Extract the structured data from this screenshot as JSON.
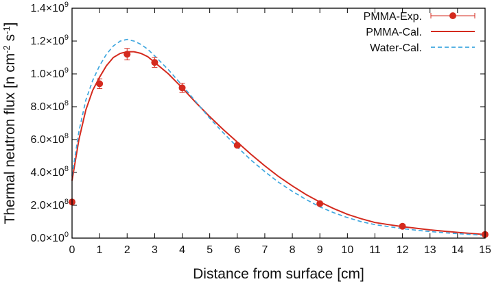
{
  "chart_data": {
    "type": "line",
    "title": "",
    "xlabel": "Distance from surface [cm]",
    "ylabel": "Thermal neutron flux [n cm⁻² s⁻¹]",
    "xlim": [
      0,
      15
    ],
    "ylim": [
      0,
      1400000000
    ],
    "grid": false,
    "legend_position": "top-right",
    "x_ticks": [
      "0",
      "1",
      "2",
      "3",
      "4",
      "5",
      "6",
      "7",
      "8",
      "9",
      "10",
      "11",
      "12",
      "13",
      "14",
      "15"
    ],
    "y_ticks": [
      {
        "value": 0,
        "mantissa": "0.0",
        "exponent": "0"
      },
      {
        "value": 200000000,
        "mantissa": "2.0",
        "exponent": "8"
      },
      {
        "value": 400000000,
        "mantissa": "4.0",
        "exponent": "8"
      },
      {
        "value": 600000000,
        "mantissa": "6.0",
        "exponent": "8"
      },
      {
        "value": 800000000,
        "mantissa": "8.0",
        "exponent": "8"
      },
      {
        "value": 1000000000,
        "mantissa": "1.0",
        "exponent": "9"
      },
      {
        "value": 1200000000,
        "mantissa": "1.2",
        "exponent": "9"
      },
      {
        "value": 1400000000,
        "mantissa": "1.4",
        "exponent": "9"
      }
    ],
    "series": [
      {
        "name": "PMMA-Exp.",
        "style": "points-errorbars",
        "color": "#d42a1e",
        "points": [
          {
            "x": 0,
            "y": 220000000,
            "err": 0
          },
          {
            "x": 1,
            "y": 940000000,
            "err": 30000000
          },
          {
            "x": 2,
            "y": 1120000000,
            "err": 35000000
          },
          {
            "x": 3,
            "y": 1070000000,
            "err": 30000000
          },
          {
            "x": 4,
            "y": 915000000,
            "err": 28000000
          },
          {
            "x": 6,
            "y": 565000000,
            "err": 10000000
          },
          {
            "x": 9,
            "y": 210000000,
            "err": 8000000
          },
          {
            "x": 12,
            "y": 72000000,
            "err": 5000000
          },
          {
            "x": 15,
            "y": 22000000,
            "err": 3000000
          }
        ]
      },
      {
        "name": "PMMA-Cal.",
        "style": "solid",
        "color": "#d42a1e",
        "x": [
          0,
          0.25,
          0.5,
          0.75,
          1,
          1.25,
          1.5,
          1.75,
          2,
          2.25,
          2.5,
          2.75,
          3,
          3.5,
          4,
          4.5,
          5,
          5.5,
          6,
          6.5,
          7,
          7.5,
          8,
          8.5,
          9,
          9.5,
          10,
          10.5,
          11,
          11.5,
          12,
          12.5,
          13,
          13.5,
          14,
          14.5,
          15
        ],
        "y": [
          350000000,
          600000000,
          780000000,
          900000000,
          980000000,
          1050000000,
          1100000000,
          1125000000,
          1135000000,
          1135000000,
          1125000000,
          1105000000,
          1070000000,
          1000000000,
          915000000,
          825000000,
          740000000,
          660000000,
          585000000,
          510000000,
          440000000,
          375000000,
          318000000,
          265000000,
          220000000,
          180000000,
          145000000,
          118000000,
          95000000,
          82000000,
          70000000,
          60000000,
          50000000,
          42000000,
          35000000,
          28000000,
          22000000
        ]
      },
      {
        "name": "Water-Cal.",
        "style": "dashed",
        "color": "#3fa7df",
        "x": [
          0,
          0.25,
          0.5,
          0.75,
          1,
          1.25,
          1.5,
          1.75,
          2,
          2.25,
          2.5,
          2.75,
          3,
          3.5,
          4,
          4.5,
          5,
          5.5,
          6,
          6.5,
          7,
          7.5,
          8,
          8.5,
          9,
          9.5,
          10,
          10.5,
          11,
          11.5,
          12,
          12.5,
          13,
          13.5,
          14,
          14.5,
          15
        ],
        "y": [
          380000000,
          650000000,
          840000000,
          960000000,
          1050000000,
          1120000000,
          1170000000,
          1200000000,
          1210000000,
          1200000000,
          1180000000,
          1150000000,
          1110000000,
          1025000000,
          930000000,
          830000000,
          730000000,
          640000000,
          555000000,
          475000000,
          405000000,
          340000000,
          285000000,
          235000000,
          190000000,
          155000000,
          125000000,
          100000000,
          82000000,
          70000000,
          58000000,
          48000000,
          40000000,
          33000000,
          27000000,
          22000000,
          17000000
        ]
      }
    ]
  }
}
